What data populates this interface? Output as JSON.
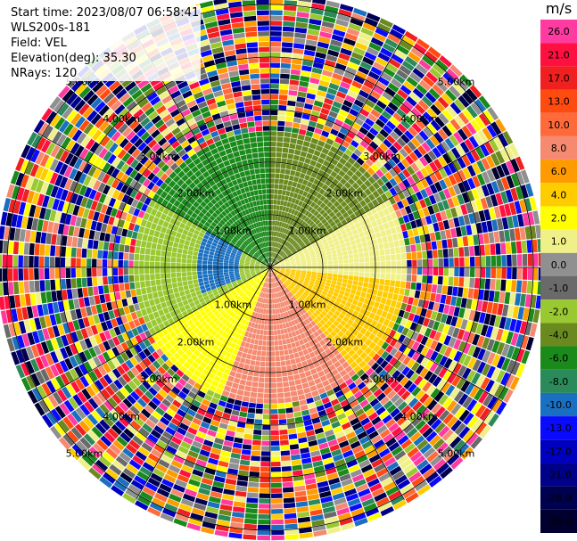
{
  "header": {
    "start_time": "Start time: 2023/08/07 06:58:41",
    "instrument": "WLS200s-181",
    "field": "Field: VEL",
    "elevation": "Elevation(deg): 35.30",
    "nrays": "NRays: 120"
  },
  "colorbar": {
    "unit": "m/s",
    "levels": [
      {
        "label": "26.0",
        "color": "#ff3aa0"
      },
      {
        "label": "21.0",
        "color": "#ff1040"
      },
      {
        "label": "17.0",
        "color": "#f02020"
      },
      {
        "label": "13.0",
        "color": "#ff4a10"
      },
      {
        "label": "10.0",
        "color": "#ff6a3a"
      },
      {
        "label": "8.0",
        "color": "#f58a70"
      },
      {
        "label": "6.0",
        "color": "#ff9a00"
      },
      {
        "label": "4.0",
        "color": "#ffcc00"
      },
      {
        "label": "2.0",
        "color": "#ffff00"
      },
      {
        "label": "1.0",
        "color": "#f0f088"
      },
      {
        "label": "0.0",
        "color": "#909090"
      },
      {
        "label": "-1.0",
        "color": "#6a6a6a"
      },
      {
        "label": "-2.0",
        "color": "#9ac830"
      },
      {
        "label": "-4.0",
        "color": "#6a8a20"
      },
      {
        "label": "-6.0",
        "color": "#1a8a1a"
      },
      {
        "label": "-8.0",
        "color": "#2a8a5a"
      },
      {
        "label": "-10.0",
        "color": "#1a70c0"
      },
      {
        "label": "-13.0",
        "color": "#0a0aff"
      },
      {
        "label": "-17.0",
        "color": "#0000c0"
      },
      {
        "label": "-21.0",
        "color": "#000088"
      },
      {
        "label": "-26.0",
        "color": "#000050"
      },
      {
        "label": "-30.0",
        "color": "#000030"
      }
    ]
  },
  "range_rings": [
    {
      "label": "1.00km"
    },
    {
      "label": "2.00km"
    },
    {
      "label": "3.00km"
    },
    {
      "label": "4.00km"
    },
    {
      "label": "5.00km"
    }
  ],
  "chart_data": {
    "type": "heatmap",
    "projection": "polar PPI",
    "field": "VEL",
    "unit": "m/s",
    "n_rays": 120,
    "range_rings_km": [
      1,
      2,
      3,
      4,
      5
    ],
    "max_range_km": 5.1,
    "regions": [
      {
        "azimuth_deg": [
          300,
          360
        ],
        "range_km": [
          0,
          2.6
        ],
        "velocity": -6.0
      },
      {
        "azimuth_deg": [
          0,
          60
        ],
        "range_km": [
          0,
          2.6
        ],
        "velocity": -4.0
      },
      {
        "azimuth_deg": [
          240,
          300
        ],
        "range_km": [
          0,
          2.6
        ],
        "velocity": -2.0
      },
      {
        "azimuth_deg": [
          60,
          95
        ],
        "range_km": [
          0,
          2.6
        ],
        "velocity": 1.0
      },
      {
        "azimuth_deg": [
          95,
          140
        ],
        "range_km": [
          0,
          2.6
        ],
        "velocity": 4.0
      },
      {
        "azimuth_deg": [
          140,
          200
        ],
        "range_km": [
          0,
          2.6
        ],
        "velocity": 8.0
      },
      {
        "azimuth_deg": [
          200,
          240
        ],
        "range_km": [
          0,
          2.6
        ],
        "velocity": 2.0
      },
      {
        "azimuth_deg": [
          250,
          300
        ],
        "range_km": [
          0.6,
          1.4
        ],
        "velocity": -10.0
      }
    ]
  }
}
